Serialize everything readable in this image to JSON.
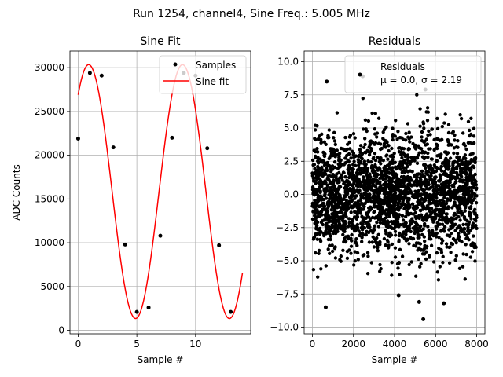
{
  "figure": {
    "suptitle": "Run 1254, channel4, Sine Freq.: 5.005 MHz"
  },
  "chart_data": [
    {
      "type": "line",
      "title": "Sine Fit",
      "xlabel": "Sample #",
      "ylabel": "ADC Counts",
      "xlim": [
        -0.7,
        14.7
      ],
      "ylim": [
        -400,
        31900
      ],
      "xticks": [
        0,
        5,
        10
      ],
      "yticks": [
        0,
        5000,
        10000,
        15000,
        20000,
        25000,
        30000
      ],
      "grid": true,
      "legend_position": "top-right",
      "series": [
        {
          "name": "Samples",
          "style": "scatter",
          "color": "#000000",
          "x": [
            0,
            1,
            2,
            3,
            4,
            5,
            6,
            7,
            8,
            9,
            10,
            11,
            12,
            13
          ],
          "y": [
            21900,
            29400,
            29100,
            20900,
            9800,
            2100,
            2600,
            10800,
            22000,
            29400,
            29100,
            20800,
            9700,
            2100
          ]
        },
        {
          "name": "Sine fit",
          "style": "line",
          "color": "#ff0000",
          "function": {
            "amplitude": 14500,
            "offset": 15850,
            "period_samples": 7.993,
            "phase_rad": 0.867,
            "x_range": [
              0,
              14
            ]
          }
        }
      ]
    },
    {
      "type": "scatter",
      "title": "Residuals",
      "xlabel": "Sample #",
      "ylabel": "",
      "xlim": [
        -400,
        8400
      ],
      "ylim": [
        -10.5,
        10.8
      ],
      "xticks": [
        0,
        2000,
        4000,
        6000,
        8000
      ],
      "yticks": [
        -10.0,
        -7.5,
        -5.0,
        -2.5,
        0.0,
        2.5,
        5.0,
        7.5,
        10.0
      ],
      "grid": true,
      "legend_position": "top-right",
      "series": [
        {
          "name": "Residuals",
          "color": "#000000",
          "distribution": {
            "n_points": 8000,
            "mean": 0.0,
            "std": 2.19,
            "x_range": [
              0,
              8000
            ]
          },
          "notable_outliers": [
            {
              "x": 2450,
              "y": 8.9
            },
            {
              "x": 700,
              "y": 8.5
            },
            {
              "x": 650,
              "y": -8.5
            },
            {
              "x": 5500,
              "y": 7.9
            },
            {
              "x": 5400,
              "y": -9.4
            },
            {
              "x": 6400,
              "y": -8.2
            },
            {
              "x": 5200,
              "y": -8.1
            },
            {
              "x": 4200,
              "y": -7.6
            }
          ]
        }
      ],
      "legend_lines": [
        "Residuals",
        "μ = 0.0, σ = 2.19"
      ]
    }
  ]
}
